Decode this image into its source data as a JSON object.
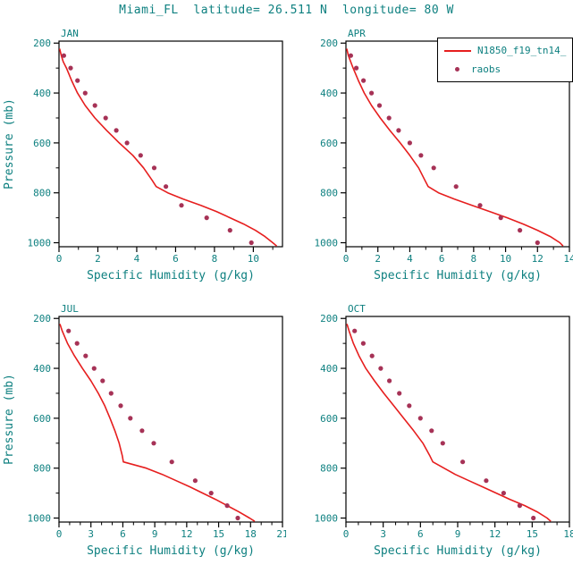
{
  "title": "Miami_FL  latitude= 26.511 N  longitude= 80 W",
  "colors": {
    "text_teal": "#0e8080",
    "model_red": "#e61e1e",
    "raobs_maroon": "#a63256",
    "axis_black": "#000000",
    "background": "#ffffff"
  },
  "legend": {
    "entries": [
      {
        "label": "N1850_f19_tn14_",
        "marker": "line"
      },
      {
        "label": "raobs",
        "marker": "dot"
      }
    ]
  },
  "axes": {
    "ylabel": "Pressure (mb)",
    "xlabel": "Specific Humidity (g/kg)",
    "pressure_ticks": [
      200,
      400,
      600,
      800,
      1000
    ],
    "pressure_minor_ticks": [
      300,
      500,
      700,
      900
    ],
    "pressure_range": [
      192,
      1016
    ]
  },
  "chart_data": [
    {
      "type": "line",
      "panel": "JAN",
      "show_ylabel": true,
      "xlim": [
        0,
        11.5
      ],
      "xticks": [
        0,
        2,
        4,
        6,
        8,
        10
      ],
      "x_minor_step": 1,
      "model_series": {
        "name": "N1850_f19_tn14_",
        "points_pressure_q": [
          [
            222,
            0.03
          ],
          [
            250,
            0.12
          ],
          [
            275,
            0.22
          ],
          [
            300,
            0.38
          ],
          [
            350,
            0.65
          ],
          [
            400,
            0.95
          ],
          [
            450,
            1.35
          ],
          [
            500,
            1.85
          ],
          [
            550,
            2.45
          ],
          [
            600,
            3.1
          ],
          [
            650,
            3.8
          ],
          [
            700,
            4.35
          ],
          [
            750,
            4.8
          ],
          [
            775,
            5.0
          ],
          [
            800,
            5.6
          ],
          [
            825,
            6.4
          ],
          [
            850,
            7.3
          ],
          [
            875,
            8.1
          ],
          [
            900,
            8.8
          ],
          [
            925,
            9.5
          ],
          [
            950,
            10.1
          ],
          [
            975,
            10.6
          ],
          [
            1000,
            11.0
          ],
          [
            1013,
            11.2
          ]
        ]
      },
      "raobs_series": {
        "name": "raobs",
        "points_pressure_q": [
          [
            250,
            0.25
          ],
          [
            300,
            0.6
          ],
          [
            350,
            0.95
          ],
          [
            400,
            1.35
          ],
          [
            450,
            1.85
          ],
          [
            500,
            2.4
          ],
          [
            550,
            2.95
          ],
          [
            600,
            3.5
          ],
          [
            650,
            4.2
          ],
          [
            700,
            4.9
          ],
          [
            775,
            5.5
          ],
          [
            850,
            6.3
          ],
          [
            900,
            7.6
          ],
          [
            950,
            8.8
          ],
          [
            1000,
            9.9
          ]
        ]
      }
    },
    {
      "type": "line",
      "panel": "APR",
      "show_ylabel": false,
      "xlim": [
        0,
        14
      ],
      "xticks": [
        0,
        2,
        4,
        6,
        8,
        10,
        12,
        14
      ],
      "x_minor_step": 1,
      "model_series": {
        "name": "N1850_f19_tn14_",
        "points_pressure_q": [
          [
            222,
            0.05
          ],
          [
            250,
            0.15
          ],
          [
            300,
            0.45
          ],
          [
            350,
            0.78
          ],
          [
            400,
            1.15
          ],
          [
            450,
            1.6
          ],
          [
            500,
            2.15
          ],
          [
            550,
            2.75
          ],
          [
            600,
            3.4
          ],
          [
            650,
            4.0
          ],
          [
            700,
            4.55
          ],
          [
            750,
            4.95
          ],
          [
            775,
            5.15
          ],
          [
            800,
            5.8
          ],
          [
            825,
            6.8
          ],
          [
            850,
            7.9
          ],
          [
            875,
            9.0
          ],
          [
            900,
            10.1
          ],
          [
            925,
            11.1
          ],
          [
            950,
            12.0
          ],
          [
            975,
            12.8
          ],
          [
            1000,
            13.4
          ],
          [
            1013,
            13.6
          ]
        ]
      },
      "raobs_series": {
        "name": "raobs",
        "points_pressure_q": [
          [
            250,
            0.3
          ],
          [
            300,
            0.65
          ],
          [
            350,
            1.1
          ],
          [
            400,
            1.6
          ],
          [
            450,
            2.1
          ],
          [
            500,
            2.7
          ],
          [
            550,
            3.3
          ],
          [
            600,
            4.0
          ],
          [
            650,
            4.7
          ],
          [
            700,
            5.5
          ],
          [
            775,
            6.9
          ],
          [
            850,
            8.4
          ],
          [
            900,
            9.7
          ],
          [
            950,
            10.9
          ],
          [
            1000,
            12.0
          ]
        ]
      }
    },
    {
      "type": "line",
      "panel": "JUL",
      "show_ylabel": true,
      "xlim": [
        0,
        21
      ],
      "xticks": [
        0,
        3,
        6,
        9,
        12,
        15,
        18,
        21
      ],
      "x_minor_step": 1,
      "model_series": {
        "name": "N1850_f19_tn14_",
        "points_pressure_q": [
          [
            222,
            0.08
          ],
          [
            250,
            0.3
          ],
          [
            300,
            0.8
          ],
          [
            350,
            1.45
          ],
          [
            400,
            2.2
          ],
          [
            450,
            3.0
          ],
          [
            500,
            3.7
          ],
          [
            550,
            4.3
          ],
          [
            600,
            4.8
          ],
          [
            650,
            5.25
          ],
          [
            700,
            5.65
          ],
          [
            750,
            5.95
          ],
          [
            775,
            6.05
          ],
          [
            800,
            8.2
          ],
          [
            825,
            9.7
          ],
          [
            850,
            11.0
          ],
          [
            875,
            12.3
          ],
          [
            900,
            13.5
          ],
          [
            925,
            14.7
          ],
          [
            950,
            15.8
          ],
          [
            975,
            16.9
          ],
          [
            1000,
            17.9
          ],
          [
            1013,
            18.4
          ]
        ]
      },
      "raobs_series": {
        "name": "raobs",
        "points_pressure_q": [
          [
            250,
            0.9
          ],
          [
            300,
            1.7
          ],
          [
            350,
            2.5
          ],
          [
            400,
            3.3
          ],
          [
            450,
            4.1
          ],
          [
            500,
            4.9
          ],
          [
            550,
            5.8
          ],
          [
            600,
            6.7
          ],
          [
            650,
            7.8
          ],
          [
            700,
            8.9
          ],
          [
            775,
            10.6
          ],
          [
            850,
            12.8
          ],
          [
            900,
            14.3
          ],
          [
            950,
            15.8
          ],
          [
            1000,
            16.8
          ]
        ]
      }
    },
    {
      "type": "line",
      "panel": "OCT",
      "show_ylabel": false,
      "xlim": [
        0,
        18
      ],
      "xticks": [
        0,
        3,
        6,
        9,
        12,
        15,
        18
      ],
      "x_minor_step": 1,
      "model_series": {
        "name": "N1850_f19_tn14_",
        "points_pressure_q": [
          [
            222,
            0.08
          ],
          [
            250,
            0.25
          ],
          [
            300,
            0.6
          ],
          [
            350,
            1.05
          ],
          [
            400,
            1.6
          ],
          [
            450,
            2.3
          ],
          [
            500,
            3.05
          ],
          [
            550,
            3.85
          ],
          [
            600,
            4.65
          ],
          [
            650,
            5.45
          ],
          [
            700,
            6.2
          ],
          [
            750,
            6.75
          ],
          [
            775,
            7.0
          ],
          [
            800,
            7.9
          ],
          [
            825,
            8.8
          ],
          [
            850,
            9.9
          ],
          [
            875,
            11.0
          ],
          [
            900,
            12.1
          ],
          [
            925,
            13.2
          ],
          [
            950,
            14.4
          ],
          [
            975,
            15.4
          ],
          [
            1000,
            16.2
          ],
          [
            1013,
            16.5
          ]
        ]
      },
      "raobs_series": {
        "name": "raobs",
        "points_pressure_q": [
          [
            250,
            0.7
          ],
          [
            300,
            1.4
          ],
          [
            350,
            2.1
          ],
          [
            400,
            2.8
          ],
          [
            450,
            3.5
          ],
          [
            500,
            4.3
          ],
          [
            550,
            5.1
          ],
          [
            600,
            6.0
          ],
          [
            650,
            6.9
          ],
          [
            700,
            7.8
          ],
          [
            775,
            9.4
          ],
          [
            850,
            11.3
          ],
          [
            900,
            12.7
          ],
          [
            950,
            14.0
          ],
          [
            1000,
            15.1
          ]
        ]
      }
    }
  ]
}
